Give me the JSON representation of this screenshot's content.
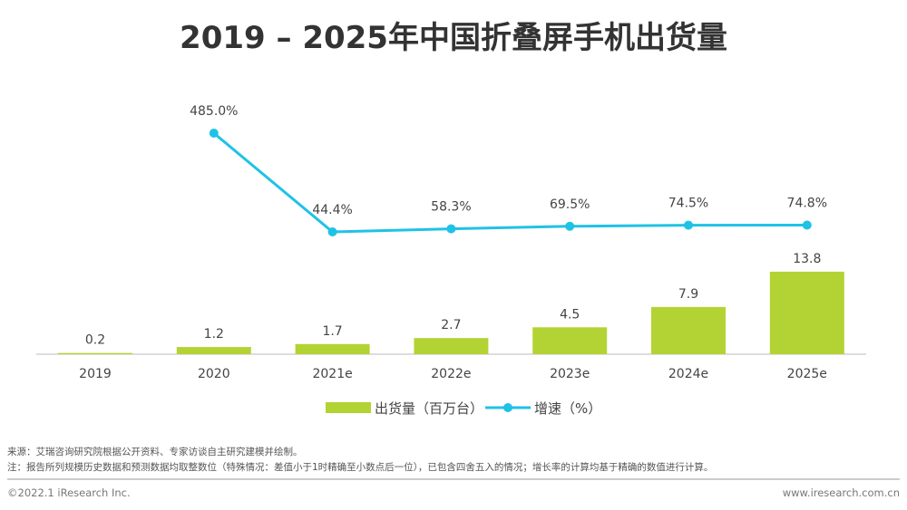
{
  "chart_data": {
    "type": "bar+line",
    "title": "2019 – 2025年中国折叠屏手机出货量",
    "categories": [
      "2019",
      "2020",
      "2021e",
      "2022e",
      "2023e",
      "2024e",
      "2025e"
    ],
    "series": [
      {
        "name": "出货量（百万台）",
        "type": "bar",
        "color": "#b3d334",
        "values": [
          0.2,
          1.2,
          1.7,
          2.7,
          4.5,
          7.9,
          13.8
        ],
        "labels": [
          "0.2",
          "1.2",
          "1.7",
          "2.7",
          "4.5",
          "7.9",
          "13.8"
        ]
      },
      {
        "name": "增速（%）",
        "type": "line",
        "color": "#1fc2e6",
        "values": [
          null,
          485.0,
          44.4,
          58.3,
          69.5,
          74.5,
          74.8
        ],
        "labels": [
          "",
          "485.0%",
          "44.4%",
          "58.3%",
          "69.5%",
          "74.5%",
          "74.8%"
        ]
      }
    ],
    "legend": "bottom",
    "grid": false
  },
  "notes": {
    "source": "来源：艾瑞咨询研究院根据公开资料、专家访谈自主研究建模并绘制。",
    "note": "注：报告所列规模历史数据和预测数据均取整数位（特殊情况：差值小于1时精确至小数点后一位），已包含四舍五入的情况；增长率的计算均基于精确的数值进行计算。"
  },
  "footer": {
    "copyright": "©2022.1 iResearch Inc.",
    "website": "www.iresearch.com.cn"
  }
}
